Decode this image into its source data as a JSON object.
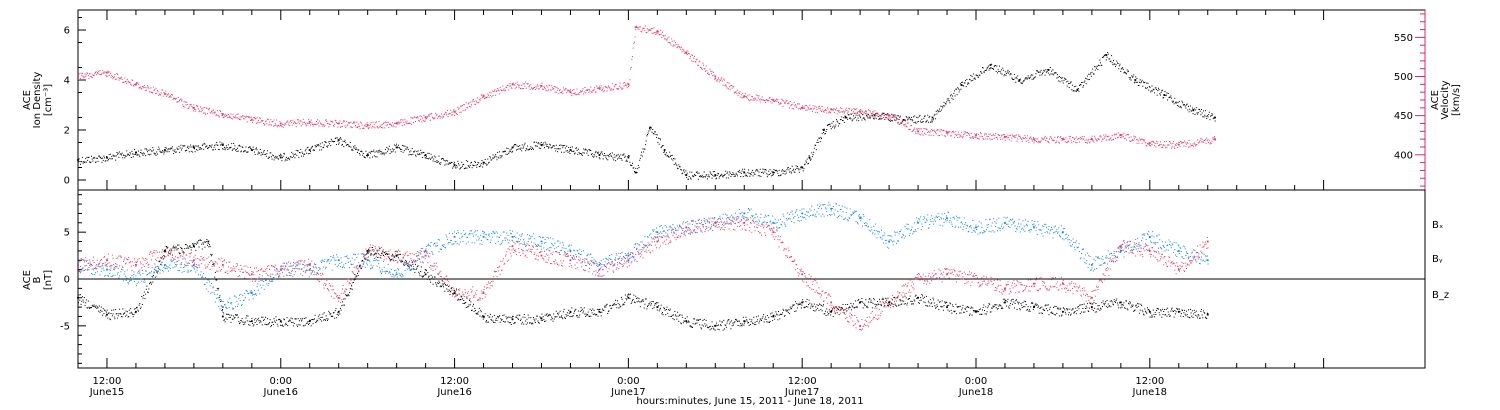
{
  "colors": {
    "black": "#000000",
    "red": "#e23a5e",
    "blue": "#1a86e8",
    "axis_right": "#d4287a"
  },
  "chart_data": [
    {
      "type": "scatter",
      "panel": "top",
      "ylabel": [
        "ACE",
        "Ion Density",
        "[cm⁻³]"
      ],
      "ylabel_right": [
        "ACE",
        "Velocity",
        "[km/s]"
      ],
      "xlim_hours": [
        -14,
        79
      ],
      "ylim": [
        -0.4,
        6.8
      ],
      "ylim_right": [
        355,
        585
      ],
      "yticks": [
        0,
        2,
        4,
        6
      ],
      "yticks_right": [
        400,
        450,
        500,
        550
      ],
      "series": [
        {
          "color": "black",
          "x": [
            -14,
            -12,
            -10,
            -8,
            -6,
            -4,
            -2,
            0,
            2,
            4,
            6,
            8,
            10,
            12,
            14,
            16,
            18,
            20,
            22,
            24,
            24.5,
            25.5,
            26.5,
            28,
            30,
            32,
            34,
            36,
            36.5,
            37.5,
            39,
            41,
            43,
            45,
            47,
            49,
            51,
            53,
            55,
            57,
            59,
            61,
            63,
            64.5
          ],
          "y": [
            0.8,
            0.9,
            1.1,
            1.2,
            1.3,
            1.4,
            1.2,
            0.9,
            1.2,
            1.6,
            1.0,
            1.3,
            1.0,
            0.6,
            0.7,
            1.3,
            1.4,
            1.2,
            1.0,
            0.9,
            0.3,
            2.1,
            1.2,
            0.2,
            0.2,
            0.3,
            0.3,
            0.5,
            0.9,
            2.0,
            2.5,
            2.6,
            2.4,
            2.5,
            3.8,
            4.6,
            4.0,
            4.4,
            3.6,
            5.0,
            4.0,
            3.4,
            2.8,
            2.5
          ]
        },
        {
          "color": "red",
          "axis": "right",
          "x": [
            -14,
            -12,
            -10,
            -8,
            -6,
            -4,
            -2,
            0,
            2,
            4,
            6,
            8,
            10,
            12,
            14,
            16,
            18,
            20,
            22,
            24,
            24.5,
            26,
            28,
            30,
            32,
            34,
            36,
            38,
            40,
            42,
            44,
            46,
            48,
            50,
            52,
            54,
            56,
            58,
            60,
            62,
            64.5
          ],
          "y": [
            500,
            505,
            490,
            478,
            460,
            452,
            445,
            440,
            442,
            440,
            438,
            440,
            448,
            455,
            475,
            490,
            488,
            480,
            485,
            490,
            563,
            558,
            530,
            500,
            475,
            470,
            460,
            458,
            455,
            450,
            430,
            428,
            425,
            423,
            420,
            420,
            420,
            425,
            415,
            413,
            420
          ]
        }
      ]
    },
    {
      "type": "scatter",
      "panel": "bottom",
      "ylabel": [
        "ACE",
        "B",
        "[nT]"
      ],
      "xlim_hours": [
        -14,
        79
      ],
      "ylim": [
        -9.5,
        9.5
      ],
      "yticks": [
        -5,
        0,
        5
      ],
      "zero_line": true,
      "legend": [
        "Bₓ",
        "Bᵧ",
        "B_z"
      ],
      "series": [
        {
          "name": "Bₓ",
          "color": "black",
          "x": [
            -14,
            -12,
            -10,
            -8,
            -6,
            -5,
            -4,
            -2,
            0,
            2,
            4,
            6,
            8,
            10,
            12,
            14,
            16,
            18,
            20,
            22,
            24,
            26,
            28,
            30,
            32,
            34,
            36,
            38,
            40,
            42,
            44,
            46,
            48,
            50,
            52,
            54,
            56,
            58,
            60,
            62,
            64
          ],
          "y": [
            -2,
            -3.8,
            -3.5,
            3,
            3.5,
            4,
            -4,
            -4.5,
            -4.5,
            -4.5,
            -3.5,
            3,
            2.5,
            0.5,
            -1.5,
            -4,
            -4.3,
            -4.2,
            -3.5,
            -3.5,
            -2,
            -3,
            -4.5,
            -5,
            -4.5,
            -4,
            -2.5,
            -3.5,
            -2.5,
            -2.5,
            -2,
            -3,
            -3.5,
            -2.5,
            -3,
            -3.5,
            -3,
            -2.5,
            -3.5,
            -3.5,
            -3.8
          ]
        },
        {
          "name": "Bᵧ",
          "color": "blue",
          "x": [
            -14,
            -12,
            -10,
            -8,
            -6,
            -4,
            -2,
            0,
            2,
            4,
            6,
            8,
            10,
            12,
            14,
            16,
            18,
            20,
            22,
            24,
            26,
            28,
            30,
            32,
            34,
            36,
            38,
            40,
            42,
            44,
            46,
            48,
            50,
            52,
            54,
            56,
            58,
            60,
            62,
            64
          ],
          "y": [
            1.5,
            1,
            0,
            1.5,
            1.5,
            -3,
            -1.5,
            1,
            1,
            2,
            2,
            0.5,
            3,
            4.5,
            4.5,
            4.5,
            4,
            3,
            1.5,
            2.5,
            5,
            5.5,
            6,
            7,
            6,
            7,
            7.5,
            6.5,
            4,
            6,
            6.5,
            5.5,
            6,
            5.5,
            5,
            1.5,
            3,
            4.5,
            3,
            2
          ]
        },
        {
          "name": "B_z",
          "color": "red",
          "x": [
            -14,
            -12,
            -10,
            -8,
            -6,
            -4,
            -2,
            0,
            2,
            4,
            6,
            8,
            10,
            12,
            14,
            16,
            18,
            20,
            22,
            24,
            26,
            28,
            30,
            32,
            34,
            36,
            38,
            40,
            42,
            44,
            46,
            48,
            50,
            52,
            54,
            56,
            58,
            60,
            62,
            64
          ],
          "y": [
            1.5,
            2,
            1.5,
            3,
            2,
            1.5,
            0.5,
            1,
            1.5,
            -2,
            3,
            2.5,
            2.5,
            -1.5,
            -1.5,
            3.5,
            2.5,
            2,
            1,
            2,
            4,
            5.5,
            6,
            6,
            5,
            0.5,
            -2.5,
            -5,
            -2.5,
            0,
            0.5,
            0,
            -1,
            -0.5,
            -0.5,
            -2,
            3.5,
            3,
            1,
            4
          ]
        }
      ]
    }
  ],
  "x_axis": {
    "ticks": [
      {
        "h": -12,
        "time": "12:00",
        "date": "June15"
      },
      {
        "h": 0,
        "time": "0:00",
        "date": "June16"
      },
      {
        "h": 12,
        "time": "12:00",
        "date": "June16"
      },
      {
        "h": 24,
        "time": "0:00",
        "date": "June17"
      },
      {
        "h": 36,
        "time": "12:00",
        "date": "June17"
      },
      {
        "h": 48,
        "time": "0:00",
        "date": "June18"
      },
      {
        "h": 60,
        "time": "12:00",
        "date": "June18"
      }
    ],
    "label": "hours:minutes, June 15, 2011 - June 18, 2011"
  }
}
